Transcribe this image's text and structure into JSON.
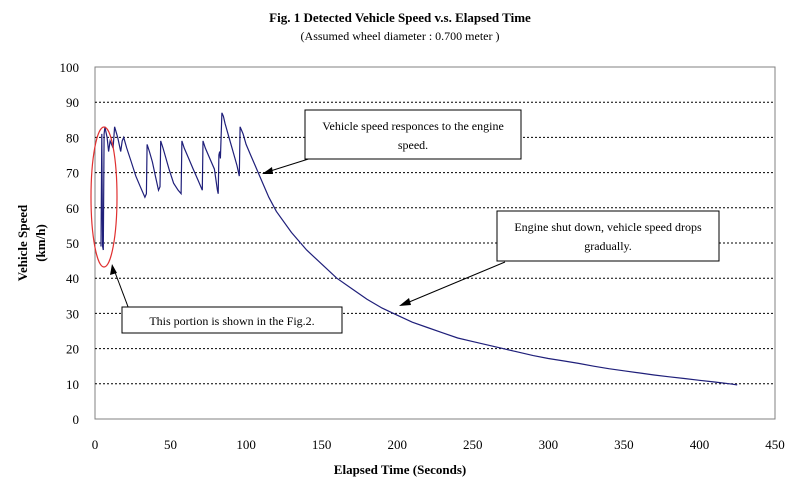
{
  "chart_data": {
    "type": "line",
    "title": "Fig. 1 Detected Vehicle Speed v.s. Elapsed Time",
    "subtitle": "(Assumed wheel diameter : 0.700 meter )",
    "xlabel": "Elapsed Time (Seconds)",
    "ylabel": [
      "Vehicle Speed",
      "(km/h)"
    ],
    "xlim": [
      0,
      450
    ],
    "ylim": [
      0,
      100
    ],
    "xticks": [
      0,
      50,
      100,
      150,
      200,
      250,
      300,
      350,
      400,
      450
    ],
    "yticks": [
      0,
      10,
      20,
      30,
      40,
      50,
      60,
      70,
      80,
      90,
      100
    ],
    "grid": "horizontal dotted",
    "line_color": "#1f1f7a",
    "series": [
      {
        "x": [
          4,
          4.5,
          5,
          5.5,
          6,
          6.3,
          6.6,
          7,
          8,
          9,
          10,
          11,
          12,
          13,
          15,
          17,
          18,
          19,
          21,
          24,
          27,
          30,
          33,
          34,
          34.5,
          36,
          38,
          40,
          42,
          43,
          43.5,
          45,
          47,
          49,
          52,
          55,
          57,
          57.5,
          59,
          62,
          65,
          68,
          71,
          71.5,
          73,
          76,
          79,
          80,
          81,
          81.5,
          82,
          82.5,
          83,
          84,
          85,
          86,
          88,
          90,
          92,
          94,
          95.5,
          96,
          97,
          98,
          100,
          103,
          106,
          110,
          115,
          120,
          130,
          140,
          150,
          160,
          170,
          180,
          190,
          200,
          210,
          220,
          230,
          240,
          250,
          260,
          270,
          280,
          290,
          300,
          310,
          320,
          330,
          340,
          350,
          360,
          370,
          380,
          390,
          400,
          410,
          420,
          425
        ],
        "y": [
          49,
          81,
          49,
          48,
          81,
          82,
          83,
          82,
          80,
          76,
          79,
          78,
          77,
          83,
          80,
          76,
          79,
          80,
          77,
          73,
          69,
          66,
          63,
          64,
          78,
          76,
          73,
          69,
          65,
          66,
          79,
          77,
          74,
          71,
          67,
          65,
          64,
          79,
          77,
          74,
          71,
          68,
          65,
          79,
          77,
          74,
          71,
          68,
          65,
          64,
          75,
          76,
          74,
          87,
          86,
          84,
          81,
          78,
          75,
          72,
          69,
          83,
          82,
          81,
          78,
          75,
          72,
          68,
          63,
          59,
          53,
          48,
          44,
          40,
          37,
          34,
          31.5,
          29.5,
          27.5,
          26,
          24.5,
          23,
          22,
          21,
          20,
          19,
          18,
          17.2,
          16.5,
          15.8,
          15,
          14.3,
          13.7,
          13.1,
          12.5,
          12,
          11.5,
          11,
          10.5,
          10,
          9.7
        ]
      }
    ],
    "annotations": [
      {
        "lines": [
          "Vehicle speed responces to the engine",
          "speed."
        ]
      },
      {
        "lines": [
          "Engine shut down, vehicle speed drops",
          "gradually."
        ]
      },
      {
        "lines": [
          "This portion is shown in the Fig.2."
        ]
      }
    ]
  }
}
